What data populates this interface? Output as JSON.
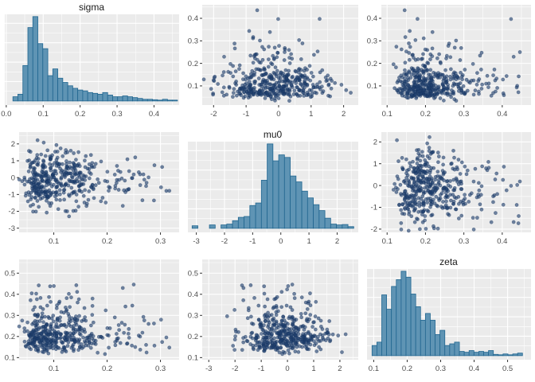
{
  "figure": {
    "kind": "posterior-pairs-plot",
    "background": "#ffffff"
  },
  "style": {
    "panel_bg": "#EBEBEB",
    "grid_major": "#FFFFFF",
    "grid_minor": "#FFFFFF",
    "bar_fill": "#5F94B4",
    "bar_stroke": "#216690",
    "point_fill": "#1E3F6D",
    "point_stroke": "#13305A",
    "tick_color": "#333333",
    "tick_label_color": "#4D4D4D",
    "title_color": "#1A1A1A"
  },
  "chart_data": {
    "type": "scatter",
    "subtype": "pairs-matrix",
    "variables": [
      "sigma",
      "mu0",
      "zeta"
    ],
    "titles": [
      "sigma",
      "mu0",
      "zeta"
    ],
    "legend": "none",
    "grid": "on",
    "scatter_model": {
      "seed": 42,
      "n": 430,
      "sigma": {
        "base": 0.02,
        "scale": 0.085,
        "shape": 0.55
      },
      "mu0": {
        "mean": -0.15,
        "sd": 0.85
      },
      "zeta": {
        "base": 0.09,
        "scale": 0.115,
        "shape": 0.5
      }
    },
    "hist_gridlines": {
      "major": [
        0.23,
        0.46,
        0.69,
        0.92
      ],
      "minor": [
        0.115,
        0.345,
        0.575,
        0.805,
        1.035
      ]
    },
    "panels": [
      {
        "id": "p0",
        "row": 0,
        "col": 0,
        "type": "hist",
        "title": "sigma",
        "var": "sigma",
        "x_range": [
          -0.004,
          0.468
        ],
        "x_ticks": {
          "values": [
            0.0,
            0.1,
            0.2,
            0.3,
            0.4
          ],
          "labels": [
            "0.0",
            "0.1",
            "0.2",
            "0.3",
            "0.4"
          ]
        },
        "bins": {
          "start": 0.018,
          "width": 0.0135,
          "heights": [
            0.05,
            0.08,
            0.42,
            0.87,
            1.0,
            0.68,
            0.62,
            0.3,
            0.38,
            0.27,
            0.22,
            0.18,
            0.15,
            0.13,
            0.12,
            0.1,
            0.09,
            0.08,
            0.1,
            0.07,
            0.05,
            0.05,
            0.06,
            0.05,
            0.04,
            0.03,
            0.02,
            0.02,
            0.015,
            0.01,
            0.02,
            0.01,
            0.01
          ]
        }
      },
      {
        "id": "p1",
        "row": 0,
        "col": 1,
        "type": "scatter",
        "title": null,
        "x_var": "mu0",
        "y_var": "sigma",
        "x_range": [
          -2.35,
          2.45
        ],
        "y_range": [
          0.015,
          0.46
        ],
        "x_ticks": {
          "values": [
            -2,
            -1,
            0,
            1,
            2
          ],
          "labels": [
            "-2",
            "-1",
            "0",
            "1",
            "2"
          ]
        },
        "y_ticks": {
          "values": [
            0.1,
            0.2,
            0.3,
            0.4
          ],
          "labels": [
            "0.1",
            "0.2",
            "0.3",
            "0.4"
          ]
        }
      },
      {
        "id": "p2",
        "row": 0,
        "col": 2,
        "type": "scatter",
        "title": null,
        "x_var": "zeta",
        "y_var": "sigma",
        "x_range": [
          0.085,
          0.475
        ],
        "y_range": [
          0.015,
          0.46
        ],
        "x_ticks": {
          "values": [
            0.1,
            0.2,
            0.3,
            0.4
          ],
          "labels": [
            "0.1",
            "0.2",
            "0.3",
            "0.4"
          ]
        },
        "y_ticks": {
          "values": [
            0.1,
            0.2,
            0.3,
            0.4
          ],
          "labels": [
            "0.1",
            "0.2",
            "0.3",
            "0.4"
          ]
        }
      },
      {
        "id": "p3",
        "row": 1,
        "col": 0,
        "type": "scatter",
        "title": null,
        "x_var": "sigma",
        "y_var": "mu0",
        "x_range": [
          0.035,
          0.335
        ],
        "y_range": [
          -3.25,
          2.7
        ],
        "x_ticks": {
          "values": [
            0.1,
            0.2,
            0.3
          ],
          "labels": [
            "0.1",
            "0.2",
            "0.3"
          ]
        },
        "y_ticks": {
          "values": [
            -3,
            -2,
            -1,
            0,
            1,
            2
          ],
          "labels": [
            "-3",
            "-2",
            "-1",
            "0",
            "1",
            "2"
          ]
        }
      },
      {
        "id": "p4",
        "row": 1,
        "col": 1,
        "type": "hist",
        "title": "mu0",
        "var": "mu0",
        "x_range": [
          -3.3,
          2.75
        ],
        "x_ticks": {
          "values": [
            -3,
            -2,
            -1,
            0,
            1,
            2
          ],
          "labels": [
            "-3",
            "-2",
            "-1",
            "0",
            "1",
            "2"
          ]
        },
        "bins": {
          "start": -3.15,
          "width": 0.205,
          "heights": [
            0.03,
            0,
            0,
            0.04,
            0,
            0.04,
            0.05,
            0.09,
            0.13,
            0.14,
            0.27,
            0.3,
            0.57,
            1.0,
            0.8,
            0.87,
            0.84,
            0.62,
            0.55,
            0.44,
            0.36,
            0.28,
            0.21,
            0.12,
            0.05,
            0.04,
            0.045,
            0.02
          ]
        }
      },
      {
        "id": "p5",
        "row": 1,
        "col": 2,
        "type": "scatter",
        "title": null,
        "x_var": "zeta",
        "y_var": "mu0",
        "x_range": [
          0.085,
          0.475
        ],
        "y_range": [
          -2.15,
          2.45
        ],
        "x_ticks": {
          "values": [
            0.1,
            0.2,
            0.3,
            0.4
          ],
          "labels": [
            "0.1",
            "0.2",
            "0.3",
            "0.4"
          ]
        },
        "y_ticks": {
          "values": [
            -2,
            -1,
            0,
            1,
            2
          ],
          "labels": [
            "-2",
            "-1",
            "0",
            "1",
            "2"
          ]
        }
      },
      {
        "id": "p6",
        "row": 2,
        "col": 0,
        "type": "scatter",
        "title": null,
        "x_var": "sigma",
        "y_var": "zeta",
        "x_range": [
          0.035,
          0.335
        ],
        "y_range": [
          0.09,
          0.565
        ],
        "x_ticks": {
          "values": [
            0.1,
            0.2,
            0.3
          ],
          "labels": [
            "0.1",
            "0.2",
            "0.3"
          ]
        },
        "y_ticks": {
          "values": [
            0.1,
            0.2,
            0.3,
            0.4,
            0.5
          ],
          "labels": [
            "0.1",
            "0.2",
            "0.3",
            "0.4",
            "0.5"
          ]
        }
      },
      {
        "id": "p7",
        "row": 2,
        "col": 1,
        "type": "scatter",
        "title": null,
        "x_var": "mu0",
        "y_var": "zeta",
        "x_range": [
          -3.25,
          2.7
        ],
        "y_range": [
          0.09,
          0.565
        ],
        "x_ticks": {
          "values": [
            -3,
            -2,
            -1,
            0,
            1,
            2
          ],
          "labels": [
            "-3",
            "-2",
            "-1",
            "0",
            "1",
            "2"
          ]
        },
        "y_ticks": {
          "values": [
            0.1,
            0.2,
            0.3,
            0.4,
            0.5
          ],
          "labels": [
            "0.1",
            "0.2",
            "0.3",
            "0.4",
            "0.5"
          ]
        }
      },
      {
        "id": "p8",
        "row": 2,
        "col": 2,
        "type": "hist",
        "title": "zeta",
        "var": "zeta",
        "x_range": [
          0.08,
          0.57
        ],
        "x_ticks": {
          "values": [
            0.1,
            0.2,
            0.3,
            0.4,
            0.5
          ],
          "labels": [
            "0.1",
            "0.2",
            "0.3",
            "0.4",
            "0.5"
          ]
        },
        "bins": {
          "start": 0.095,
          "width": 0.0145,
          "heights": [
            0.12,
            0.16,
            0.72,
            0.55,
            0.82,
            0.9,
            1.0,
            0.93,
            0.73,
            0.58,
            0.42,
            0.5,
            0.42,
            0.25,
            0.3,
            0.12,
            0.14,
            0.16,
            0.05,
            0.04,
            0.06,
            0.04,
            0.05,
            0.04,
            0.06,
            0.015,
            0.01,
            0.02,
            0.01,
            0.02,
            0.03
          ]
        }
      }
    ]
  }
}
